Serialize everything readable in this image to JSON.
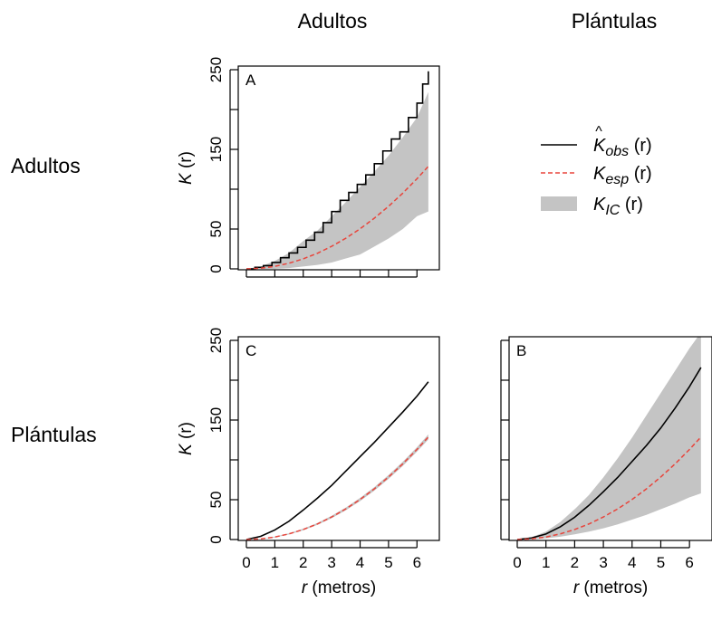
{
  "column_headers": [
    "Adultos",
    "Plántulas"
  ],
  "row_headers": [
    "Adultos",
    "Plántulas"
  ],
  "legend": {
    "placement": "right of panel A",
    "entries": [
      {
        "base": "K",
        "hat": "^",
        "sub": "obs",
        "arg": "(r)",
        "style": "solid line",
        "color": "#000000"
      },
      {
        "base": "K",
        "hat": "",
        "sub": "esp",
        "arg": "(r)",
        "style": "dashed line",
        "color": "#e8453c"
      },
      {
        "base": "K",
        "hat": "",
        "sub": "IC",
        "arg": "(r)",
        "style": "band",
        "color": "#c4c4c4"
      }
    ]
  },
  "axis_text": {
    "ylabel_base": "K",
    "ylabel_arg": "(r)",
    "xlabel_var": "r",
    "xlabel_unit": "(metros)"
  },
  "colors": {
    "observed": "#000000",
    "expected": "#e8453c",
    "envelope": "#c4c4c4"
  },
  "chart_data": [
    {
      "id": "A",
      "panel_label": "A",
      "type": "line",
      "xlim": [
        0,
        6.5
      ],
      "ylim": [
        0,
        250
      ],
      "xticks": [
        0,
        1,
        2,
        3,
        4,
        5,
        6
      ],
      "xtick_labels_shown": false,
      "yticks": [
        0,
        50,
        150,
        250
      ],
      "ytick_minor": [
        100,
        200
      ],
      "xlabel": "",
      "ylabel": "K (r)",
      "series": [
        {
          "role": "observed",
          "x": [
            0,
            0.3,
            0.6,
            0.9,
            1.2,
            1.5,
            1.8,
            2.1,
            2.4,
            2.7,
            3.0,
            3.3,
            3.6,
            3.9,
            4.2,
            4.5,
            4.8,
            5.1,
            5.4,
            5.7,
            6.0,
            6.2,
            6.4
          ],
          "y": [
            0,
            2,
            4,
            8,
            14,
            20,
            27,
            36,
            46,
            58,
            72,
            86,
            96,
            106,
            118,
            132,
            148,
            163,
            172,
            190,
            208,
            232,
            248
          ],
          "step": true
        },
        {
          "role": "expected",
          "x": [
            0,
            0.5,
            1,
            1.5,
            2,
            2.5,
            3,
            3.5,
            4,
            4.5,
            5,
            5.5,
            6,
            6.4
          ],
          "y": [
            0,
            0.8,
            3.1,
            7.1,
            12.6,
            19.6,
            28.3,
            38.5,
            50.3,
            63.6,
            78.5,
            95.0,
            113.1,
            128.7
          ]
        },
        {
          "role": "envelope",
          "x": [
            0,
            0.5,
            1,
            1.5,
            2,
            2.5,
            3,
            3.5,
            4,
            4.5,
            5,
            5.5,
            6,
            6.4
          ],
          "lower": [
            0,
            0,
            0,
            1,
            3,
            5,
            8,
            13,
            18,
            28,
            38,
            50,
            66,
            72
          ],
          "upper": [
            0,
            3,
            10,
            20,
            35,
            48,
            66,
            84,
            103,
            122,
            142,
            165,
            190,
            222
          ]
        }
      ]
    },
    {
      "id": "C",
      "panel_label": "C",
      "type": "line",
      "xlim": [
        0,
        6.5
      ],
      "ylim": [
        0,
        250
      ],
      "xticks": [
        0,
        1,
        2,
        3,
        4,
        5,
        6
      ],
      "xtick_labels_shown": true,
      "yticks": [
        0,
        50,
        150,
        250
      ],
      "ytick_minor": [
        100,
        200
      ],
      "xlabel": "r (metros)",
      "ylabel": "K (r)",
      "series": [
        {
          "role": "observed",
          "x": [
            0,
            0.5,
            1,
            1.5,
            2,
            2.5,
            3,
            3.5,
            4,
            4.5,
            5,
            5.5,
            6,
            6.4
          ],
          "y": [
            0,
            4,
            12,
            23,
            37,
            52,
            68,
            86,
            104,
            122,
            141,
            160,
            180,
            198
          ]
        },
        {
          "role": "expected",
          "x": [
            0,
            0.5,
            1,
            1.5,
            2,
            2.5,
            3,
            3.5,
            4,
            4.5,
            5,
            5.5,
            6,
            6.4
          ],
          "y": [
            0,
            0.8,
            3.1,
            7.1,
            12.6,
            19.6,
            28.3,
            38.5,
            50.3,
            63.6,
            78.5,
            95.0,
            113.1,
            128.7
          ]
        },
        {
          "role": "envelope",
          "x": [
            0,
            0.5,
            1,
            1.5,
            2,
            2.5,
            3,
            3.5,
            4,
            4.5,
            5,
            5.5,
            6,
            6.4
          ],
          "lower": [
            0,
            0.6,
            2.6,
            6.4,
            11.6,
            18.4,
            26.8,
            36.8,
            48.3,
            61.4,
            76.1,
            92.4,
            110.3,
            125.5
          ],
          "upper": [
            0,
            1.0,
            3.6,
            7.8,
            13.6,
            20.8,
            29.8,
            40.2,
            52.3,
            65.8,
            80.9,
            97.6,
            115.9,
            131.9
          ]
        }
      ]
    },
    {
      "id": "B",
      "panel_label": "B",
      "type": "line",
      "xlim": [
        0,
        6.5
      ],
      "ylim": [
        0,
        250
      ],
      "xticks": [
        0,
        1,
        2,
        3,
        4,
        5,
        6
      ],
      "xtick_labels_shown": true,
      "yticks": [
        0,
        50,
        150,
        250
      ],
      "ytick_minor": [
        100,
        200
      ],
      "ytick_labels_shown": false,
      "xlabel": "r (metros)",
      "ylabel": "",
      "series": [
        {
          "role": "observed",
          "x": [
            0,
            0.5,
            1,
            1.5,
            2,
            2.5,
            3,
            3.5,
            4,
            4.5,
            5,
            5.5,
            6,
            6.4
          ],
          "y": [
            0,
            2,
            7,
            16,
            28,
            43,
            60,
            78,
            98,
            118,
            140,
            165,
            192,
            216
          ]
        },
        {
          "role": "expected",
          "x": [
            0,
            0.5,
            1,
            1.5,
            2,
            2.5,
            3,
            3.5,
            4,
            4.5,
            5,
            5.5,
            6,
            6.4
          ],
          "y": [
            0,
            0.8,
            3.1,
            7.1,
            12.6,
            19.6,
            28.3,
            38.5,
            50.3,
            63.6,
            78.5,
            95.0,
            113.1,
            128.7
          ]
        },
        {
          "role": "envelope",
          "x": [
            0,
            0.5,
            1,
            1.5,
            2,
            2.5,
            3,
            3.5,
            4,
            4.5,
            5,
            5.5,
            6,
            6.4
          ],
          "lower": [
            0,
            0.3,
            1.5,
            3.5,
            6.5,
            10,
            14,
            19,
            25,
            31,
            38,
            45,
            53,
            58
          ],
          "upper": [
            0,
            3,
            10,
            22,
            38,
            56,
            78,
            102,
            128,
            156,
            184,
            212,
            240,
            260
          ]
        }
      ]
    }
  ]
}
